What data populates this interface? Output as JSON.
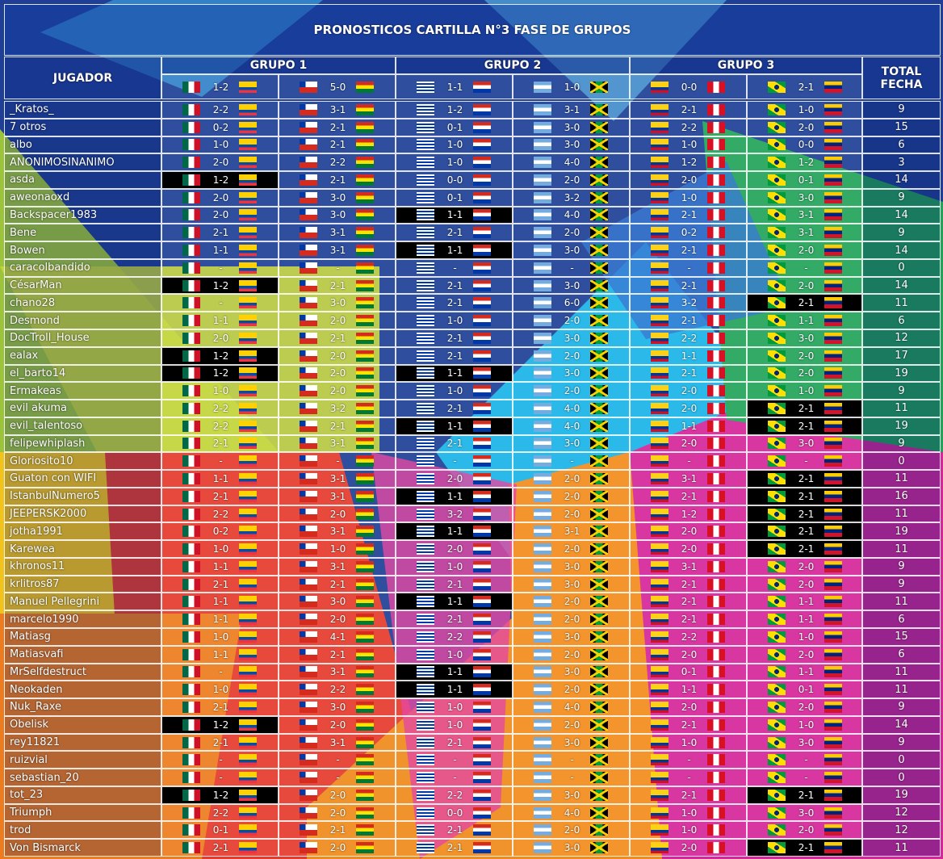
{
  "title": "PRONOSTICOS CARTILLA N°3 FASE DE GRUPOS",
  "header": {
    "player": "JUGADOR",
    "total": "TOTAL FECHA",
    "groups": [
      "GRUPO 1",
      "GRUPO 2",
      "GRUPO 3"
    ]
  },
  "matches": [
    [
      "MEX",
      "ECU"
    ],
    [
      "CHI",
      "BOL"
    ],
    [
      "URU",
      "PAR"
    ],
    [
      "ARG",
      "JAM"
    ],
    [
      "COL",
      "PER"
    ],
    [
      "BRA",
      "VEN"
    ]
  ],
  "results": [
    "1-2",
    "5-0",
    "1-1",
    "1-0",
    "0-0",
    "2-1"
  ],
  "rows": [
    {
      "name": "_Kratos_",
      "picks": [
        "2-2",
        "3-1",
        "1-2",
        "3-1",
        "2-1",
        "1-0"
      ],
      "hits": [
        false,
        false,
        false,
        false,
        false,
        false
      ],
      "total": "9"
    },
    {
      "name": "7 otros",
      "picks": [
        "0-2",
        "2-1",
        "0-1",
        "3-0",
        "2-2",
        "2-0"
      ],
      "hits": [
        false,
        false,
        false,
        false,
        false,
        false
      ],
      "total": "15"
    },
    {
      "name": "albo",
      "picks": [
        "1-0",
        "2-1",
        "1-0",
        "3-0",
        "1-0",
        "0-0"
      ],
      "hits": [
        false,
        false,
        false,
        false,
        false,
        false
      ],
      "total": "6"
    },
    {
      "name": "ANONIMOSINANIMO",
      "picks": [
        "2-0",
        "2-2",
        "1-0",
        "4-0",
        "1-2",
        "1-2"
      ],
      "hits": [
        false,
        false,
        false,
        false,
        false,
        false
      ],
      "total": "3"
    },
    {
      "name": "asda",
      "picks": [
        "1-2",
        "2-1",
        "0-0",
        "2-0",
        "2-0",
        "0-1"
      ],
      "hits": [
        true,
        false,
        false,
        false,
        false,
        false
      ],
      "total": "14"
    },
    {
      "name": "aweonaoxd",
      "picks": [
        "2-0",
        "3-0",
        "0-1",
        "3-2",
        "1-0",
        "3-0"
      ],
      "hits": [
        false,
        false,
        false,
        false,
        false,
        false
      ],
      "total": "9"
    },
    {
      "name": "Backspacer1983",
      "picks": [
        "2-0",
        "3-0",
        "1-1",
        "4-0",
        "2-1",
        "3-1"
      ],
      "hits": [
        false,
        false,
        true,
        false,
        false,
        false
      ],
      "total": "14"
    },
    {
      "name": "Bene",
      "picks": [
        "2-1",
        "3-1",
        "2-1",
        "2-0",
        "0-2",
        "3-1"
      ],
      "hits": [
        false,
        false,
        false,
        false,
        false,
        false
      ],
      "total": "9"
    },
    {
      "name": "Bowen",
      "picks": [
        "1-1",
        "3-1",
        "1-1",
        "3-0",
        "2-1",
        "2-0"
      ],
      "hits": [
        false,
        false,
        true,
        false,
        false,
        false
      ],
      "total": "14"
    },
    {
      "name": "caracolbandido",
      "picks": [
        "-",
        "-",
        "-",
        "-",
        "-",
        "-"
      ],
      "hits": [
        false,
        false,
        false,
        false,
        false,
        false
      ],
      "total": "0"
    },
    {
      "name": "CésarMan",
      "picks": [
        "1-2",
        "2-1",
        "2-1",
        "3-0",
        "2-1",
        "2-0"
      ],
      "hits": [
        true,
        false,
        false,
        false,
        false,
        false
      ],
      "total": "14"
    },
    {
      "name": "chano28",
      "picks": [
        "-",
        "3-0",
        "2-1",
        "6-0",
        "3-2",
        "2-1"
      ],
      "hits": [
        false,
        false,
        false,
        false,
        false,
        true
      ],
      "total": "11"
    },
    {
      "name": "Desmond",
      "picks": [
        "1-1",
        "2-0",
        "1-0",
        "2-0",
        "2-1",
        "1-1"
      ],
      "hits": [
        false,
        false,
        false,
        false,
        false,
        false
      ],
      "total": "6"
    },
    {
      "name": "DocTroll_House",
      "picks": [
        "2-0",
        "2-1",
        "2-1",
        "3-0",
        "2-2",
        "3-0"
      ],
      "hits": [
        false,
        false,
        false,
        false,
        false,
        false
      ],
      "total": "12"
    },
    {
      "name": "ealax",
      "picks": [
        "1-2",
        "2-0",
        "2-1",
        "2-0",
        "1-1",
        "2-0"
      ],
      "hits": [
        true,
        false,
        false,
        false,
        false,
        false
      ],
      "total": "17"
    },
    {
      "name": "el_barto14",
      "picks": [
        "1-2",
        "2-0",
        "1-1",
        "3-0",
        "2-1",
        "2-0"
      ],
      "hits": [
        true,
        false,
        true,
        false,
        false,
        false
      ],
      "total": "19"
    },
    {
      "name": "Ermakeas",
      "picks": [
        "1-0",
        "2-0",
        "1-0",
        "2-0",
        "2-0",
        "1-0"
      ],
      "hits": [
        false,
        false,
        false,
        false,
        false,
        false
      ],
      "total": "9"
    },
    {
      "name": "evil akuma",
      "picks": [
        "2-2",
        "3-2",
        "2-1",
        "4-0",
        "2-0",
        "2-1"
      ],
      "hits": [
        false,
        false,
        false,
        false,
        false,
        true
      ],
      "total": "11"
    },
    {
      "name": "evil_talentoso",
      "picks": [
        "2-2",
        "2-1",
        "1-1",
        "4-0",
        "1-1",
        "2-1"
      ],
      "hits": [
        false,
        false,
        true,
        false,
        false,
        true
      ],
      "total": "19"
    },
    {
      "name": "felipewhiplash",
      "picks": [
        "2-1",
        "3-1",
        "2-1",
        "3-0",
        "2-0",
        "3-0"
      ],
      "hits": [
        false,
        false,
        false,
        false,
        false,
        false
      ],
      "total": "9"
    },
    {
      "name": "Gloriosito10",
      "picks": [
        "-",
        "-",
        "-",
        "-",
        "-",
        "-"
      ],
      "hits": [
        false,
        false,
        false,
        false,
        false,
        false
      ],
      "total": "0"
    },
    {
      "name": "Guaton con WIFI",
      "picks": [
        "1-1",
        "3-1",
        "2-0",
        "2-0",
        "3-1",
        "2-1"
      ],
      "hits": [
        false,
        false,
        false,
        false,
        false,
        true
      ],
      "total": "11"
    },
    {
      "name": "IstanbulNumero5",
      "picks": [
        "2-1",
        "3-1",
        "1-1",
        "2-0",
        "2-1",
        "2-1"
      ],
      "hits": [
        false,
        false,
        true,
        false,
        false,
        true
      ],
      "total": "16"
    },
    {
      "name": "JEEPERSK2000",
      "picks": [
        "2-2",
        "2-0",
        "3-2",
        "2-0",
        "1-2",
        "2-1"
      ],
      "hits": [
        false,
        false,
        false,
        false,
        false,
        true
      ],
      "total": "11"
    },
    {
      "name": "jotha1991",
      "picks": [
        "0-2",
        "3-1",
        "1-1",
        "3-1",
        "2-0",
        "2-1"
      ],
      "hits": [
        false,
        false,
        true,
        false,
        false,
        true
      ],
      "total": "19"
    },
    {
      "name": "Karewea",
      "picks": [
        "1-0",
        "1-0",
        "2-0",
        "2-0",
        "2-0",
        "2-1"
      ],
      "hits": [
        false,
        false,
        false,
        false,
        false,
        true
      ],
      "total": "11"
    },
    {
      "name": "khronos11",
      "picks": [
        "1-1",
        "3-1",
        "1-0",
        "3-0",
        "3-1",
        "2-0"
      ],
      "hits": [
        false,
        false,
        false,
        false,
        false,
        false
      ],
      "total": "9"
    },
    {
      "name": "krlitros87",
      "picks": [
        "2-1",
        "2-1",
        "2-1",
        "3-0",
        "2-1",
        "2-0"
      ],
      "hits": [
        false,
        false,
        false,
        false,
        false,
        false
      ],
      "total": "9"
    },
    {
      "name": "Manuel Pellegrini",
      "picks": [
        "1-1",
        "3-0",
        "1-1",
        "2-0",
        "2-1",
        "1-1"
      ],
      "hits": [
        false,
        false,
        true,
        false,
        false,
        false
      ],
      "total": "11"
    },
    {
      "name": "marcelo1990",
      "picks": [
        "1-1",
        "2-0",
        "2-1",
        "2-0",
        "2-1",
        "1-1"
      ],
      "hits": [
        false,
        false,
        false,
        false,
        false,
        false
      ],
      "total": "6"
    },
    {
      "name": "Matiasg",
      "picks": [
        "1-0",
        "4-1",
        "2-2",
        "3-0",
        "2-2",
        "1-0"
      ],
      "hits": [
        false,
        false,
        false,
        false,
        false,
        false
      ],
      "total": "15"
    },
    {
      "name": "Matiasvafi",
      "picks": [
        "1-1",
        "2-1",
        "1-0",
        "2-0",
        "2-0",
        "2-0"
      ],
      "hits": [
        false,
        false,
        false,
        false,
        false,
        false
      ],
      "total": "6"
    },
    {
      "name": "MrSelfdestruct",
      "picks": [
        "-",
        "3-1",
        "1-1",
        "3-0",
        "0-1",
        "1-1"
      ],
      "hits": [
        false,
        false,
        true,
        false,
        false,
        false
      ],
      "total": "11"
    },
    {
      "name": "Neokaden",
      "picks": [
        "1-0",
        "2-2",
        "1-1",
        "2-0",
        "1-1",
        "0-1"
      ],
      "hits": [
        false,
        false,
        true,
        false,
        false,
        false
      ],
      "total": "11"
    },
    {
      "name": "Nuk_Raxe",
      "picks": [
        "2-1",
        "3-0",
        "1-0",
        "4-0",
        "2-0",
        "2-0"
      ],
      "hits": [
        false,
        false,
        false,
        false,
        false,
        false
      ],
      "total": "9"
    },
    {
      "name": "Obelisk",
      "picks": [
        "1-2",
        "2-0",
        "1-0",
        "2-0",
        "2-1",
        "1-0"
      ],
      "hits": [
        true,
        false,
        false,
        false,
        false,
        false
      ],
      "total": "14"
    },
    {
      "name": "rey11821",
      "picks": [
        "2-1",
        "3-1",
        "2-1",
        "3-0",
        "1-0",
        "3-0"
      ],
      "hits": [
        false,
        false,
        false,
        false,
        false,
        false
      ],
      "total": "9"
    },
    {
      "name": "ruizvial",
      "picks": [
        "-",
        "-",
        "-",
        "-",
        "-",
        "-"
      ],
      "hits": [
        false,
        false,
        false,
        false,
        false,
        false
      ],
      "total": "0"
    },
    {
      "name": "sebastian_20",
      "picks": [
        "-",
        "-",
        "-",
        "-",
        "-",
        "-"
      ],
      "hits": [
        false,
        false,
        false,
        false,
        false,
        false
      ],
      "total": "0"
    },
    {
      "name": "tot_23",
      "picks": [
        "1-2",
        "2-0",
        "2-2",
        "3-0",
        "2-1",
        "2-1"
      ],
      "hits": [
        true,
        false,
        false,
        false,
        false,
        true
      ],
      "total": "19"
    },
    {
      "name": "Triumph",
      "picks": [
        "2-2",
        "2-0",
        "0-0",
        "4-0",
        "1-0",
        "3-0"
      ],
      "hits": [
        false,
        false,
        false,
        false,
        false,
        false
      ],
      "total": "12"
    },
    {
      "name": "trod",
      "picks": [
        "0-1",
        "2-1",
        "2-1",
        "2-0",
        "1-0",
        "2-0"
      ],
      "hits": [
        false,
        false,
        false,
        false,
        false,
        false
      ],
      "total": "12"
    },
    {
      "name": "Von Bismarck",
      "picks": [
        "2-1",
        "2-0",
        "2-1",
        "3-0",
        "2-0",
        "2-1"
      ],
      "hits": [
        false,
        false,
        false,
        false,
        false,
        true
      ],
      "total": "11"
    }
  ]
}
